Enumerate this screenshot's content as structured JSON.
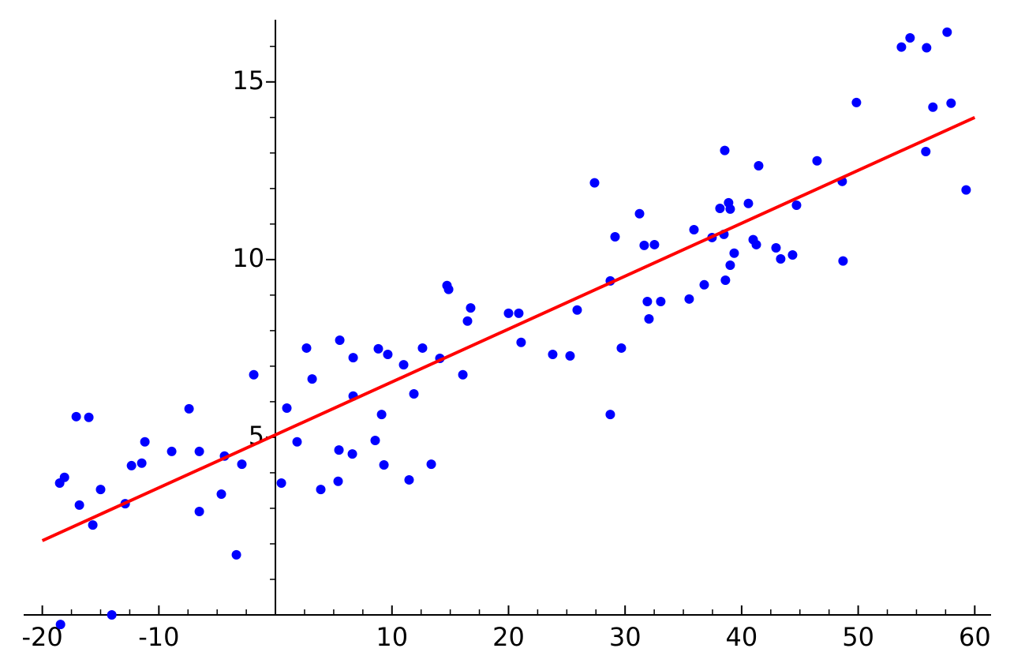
{
  "chart_data": {
    "type": "scatter",
    "xlim": [
      -21.6,
      61.4
    ],
    "ylim": [
      0,
      16.75
    ],
    "xticks": [
      -20,
      -10,
      10,
      20,
      30,
      40,
      50,
      60
    ],
    "yticks": [
      5,
      10,
      15
    ],
    "xminorticks": [
      -17.5,
      -15,
      -12.5,
      -7.5,
      -5,
      -2.5,
      2.5,
      5,
      7.5,
      12.5,
      15,
      17.5,
      22.5,
      25,
      27.5,
      32.5,
      35,
      37.5,
      42.5,
      45,
      47.5,
      52.5,
      55,
      57.5
    ],
    "yminorticks": [
      1,
      2,
      3,
      4,
      6,
      7,
      8,
      9,
      11,
      12,
      13,
      14,
      16
    ],
    "series": [
      {
        "type": "scatter",
        "color": "#0000ff",
        "x": [
          -18.44,
          -18.51,
          -18.1,
          -17.09,
          -16.82,
          -16.01,
          -15.67,
          -15.0,
          -14.04,
          -12.89,
          -12.35,
          -11.47,
          -11.2,
          -8.9,
          -7.41,
          -6.53,
          -6.53,
          -4.64,
          -4.37,
          -3.35,
          -2.88,
          -1.86,
          0.51,
          0.98,
          1.86,
          2.67,
          3.15,
          3.89,
          5.38,
          5.45,
          5.52,
          6.6,
          6.67,
          6.67,
          8.56,
          8.83,
          9.11,
          9.31,
          9.64,
          11.0,
          11.47,
          11.88,
          12.62,
          13.37,
          14.11,
          14.72,
          14.86,
          16.08,
          16.48,
          16.75,
          20.0,
          20.88,
          21.08,
          23.79,
          25.28,
          25.89,
          27.38,
          28.73,
          28.73,
          29.14,
          29.68,
          31.24,
          31.64,
          31.91,
          32.05,
          32.52,
          33.06,
          35.5,
          35.91,
          36.79,
          37.46,
          38.14,
          38.48,
          38.55,
          38.61,
          38.88,
          39.02,
          39.02,
          39.36,
          40.58,
          40.99,
          41.26,
          41.46,
          42.95,
          43.35,
          44.37,
          44.71,
          46.47,
          48.63,
          48.7,
          49.85,
          53.71,
          54.45,
          55.87,
          55.8,
          56.41,
          57.63,
          57.97,
          59.26
        ],
        "values": [
          -0.27,
          3.71,
          3.87,
          5.58,
          3.09,
          5.56,
          2.53,
          3.53,
          0.0,
          3.13,
          4.2,
          4.27,
          4.87,
          4.6,
          5.8,
          4.6,
          2.91,
          3.4,
          4.47,
          1.69,
          4.24,
          6.76,
          3.71,
          5.82,
          4.87,
          7.51,
          6.64,
          3.53,
          3.76,
          4.64,
          7.73,
          4.53,
          7.24,
          6.16,
          4.91,
          7.49,
          5.64,
          4.22,
          7.33,
          7.04,
          3.8,
          6.22,
          7.51,
          4.24,
          7.22,
          9.27,
          9.16,
          6.76,
          8.27,
          8.64,
          8.49,
          8.49,
          7.67,
          7.33,
          7.29,
          8.58,
          12.16,
          5.64,
          9.4,
          10.64,
          7.51,
          11.29,
          10.4,
          8.82,
          8.33,
          10.42,
          8.82,
          8.89,
          10.84,
          9.29,
          10.62,
          11.44,
          10.71,
          13.07,
          9.42,
          11.6,
          11.42,
          9.84,
          10.18,
          11.58,
          10.56,
          10.42,
          12.64,
          10.33,
          10.02,
          10.13,
          11.53,
          12.78,
          12.2,
          9.96,
          14.42,
          15.98,
          16.24,
          15.96,
          13.04,
          14.29,
          16.4,
          14.4,
          11.96
        ]
      },
      {
        "type": "line",
        "color": "#ff0000",
        "x": [
          -20,
          60
        ],
        "values": [
          2.09,
          14.0
        ]
      }
    ]
  }
}
